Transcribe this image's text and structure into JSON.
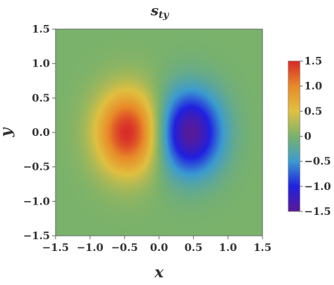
{
  "chart_data": {
    "type": "heatmap",
    "title": "s",
    "title_subscript": "ty",
    "xlabel": "x",
    "ylabel": "y",
    "xlim": [
      -1.5,
      1.5
    ],
    "ylim": [
      -1.5,
      1.5
    ],
    "x_ticks": [
      "−1.5",
      "−1.0",
      "−0.5",
      "0.0",
      "0.5",
      "1.0",
      "1.5"
    ],
    "y_ticks": [
      "1.5",
      "1.0",
      "0.5",
      "0.0",
      "−0.5",
      "−1.0",
      "−1.5"
    ],
    "colorbar": {
      "range": [
        -1.5,
        1.5
      ],
      "tick_labels": [
        "1.5",
        "1.0",
        "0.5",
        "0",
        "−0.5",
        "−1.0",
        "−1.5"
      ],
      "colors": [
        "#5a1a96",
        "#2020e0",
        "#3b9bd0",
        "#7ab26b",
        "#e0c040",
        "#e88a28",
        "#d82828"
      ]
    },
    "field": {
      "description": "dipole pattern",
      "max": {
        "x": -0.45,
        "y": 0.0,
        "value": 1.5
      },
      "min": {
        "x": 0.45,
        "y": 0.0,
        "value": -1.5
      },
      "background_value": 0.0
    },
    "legend_position": "right",
    "grid": false
  }
}
